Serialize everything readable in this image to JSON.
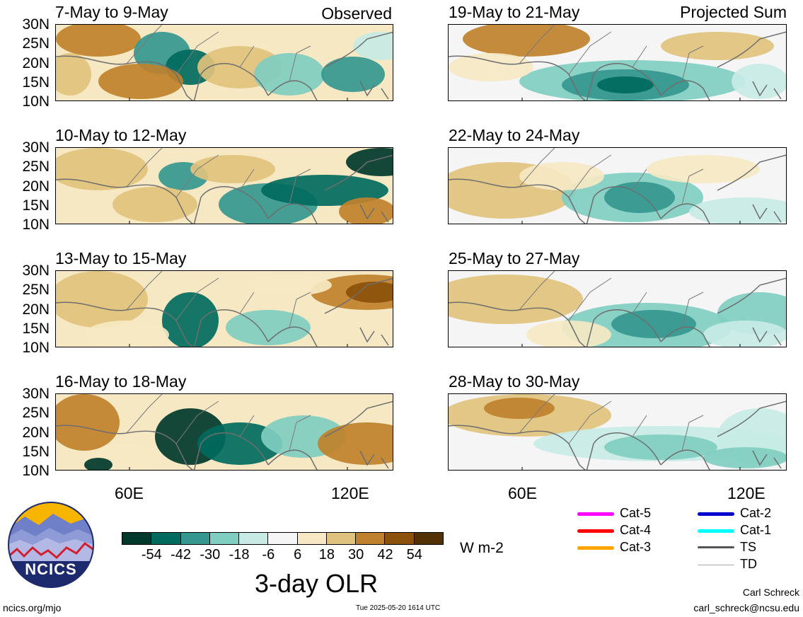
{
  "panels": [
    {
      "title": "7-May to 9-May",
      "label": "Observed"
    },
    {
      "title": "19-May to 21-May",
      "label": "Projected Sum"
    },
    {
      "title": "10-May to 12-May",
      "label": ""
    },
    {
      "title": "22-May to 24-May",
      "label": ""
    },
    {
      "title": "13-May to 15-May",
      "label": ""
    },
    {
      "title": "25-May to 27-May",
      "label": ""
    },
    {
      "title": "16-May to 18-May",
      "label": ""
    },
    {
      "title": "28-May to 30-May",
      "label": ""
    }
  ],
  "y_ticks": [
    "30N",
    "25N",
    "20N",
    "15N",
    "10N"
  ],
  "x_ticks": [
    "60E",
    "120E"
  ],
  "colorbar": {
    "ticks": [
      "-54",
      "-42",
      "-30",
      "-18",
      "-6",
      "6",
      "18",
      "30",
      "42",
      "54"
    ],
    "colors": [
      "#01382c",
      "#016a5e",
      "#35978f",
      "#80cdc1",
      "#c7eae5",
      "#f5f5f5",
      "#f6e8c3",
      "#dfc27d",
      "#bf812d",
      "#8c510a",
      "#543005"
    ],
    "units": "W m-2",
    "title": "3-day OLR"
  },
  "legend": [
    {
      "label": "Cat-5",
      "color": "#ff00ff"
    },
    {
      "label": "Cat-4",
      "color": "#ff0000"
    },
    {
      "label": "Cat-3",
      "color": "#ffa500"
    },
    {
      "label": "Cat-2",
      "color": "#0000cd"
    },
    {
      "label": "Cat-1",
      "color": "#00ffff"
    },
    {
      "label": "TS",
      "color": "#555555"
    },
    {
      "label": "TD",
      "color": "#aaaaaa"
    }
  ],
  "logo": {
    "text": "NCICS"
  },
  "footer": {
    "left": "ncics.org/mjo",
    "center": "Tue 2025-05-20 1614 UTC",
    "author": "Carl Schreck",
    "email": "carl_schreck@ncsu.edu"
  }
}
